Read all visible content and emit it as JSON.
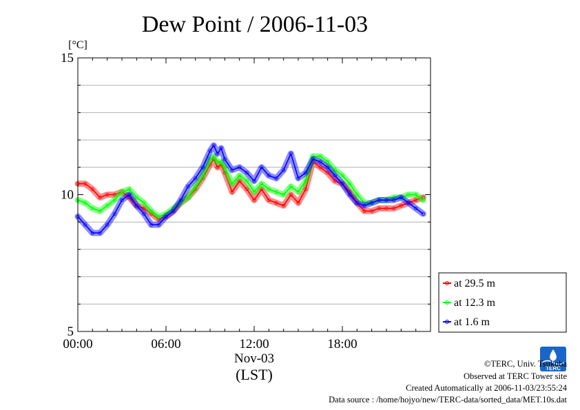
{
  "chart_data": {
    "type": "line",
    "title": "Dew Point / 2006-11-03",
    "y_unit": "[°C]",
    "ylim": [
      5,
      15
    ],
    "y_ticks": [
      5,
      10,
      15
    ],
    "y_grid": [
      6,
      7,
      8,
      9,
      11,
      12,
      13,
      14
    ],
    "xlim": [
      0,
      24
    ],
    "x_ticks": [
      {
        "value": 0,
        "label": "00:00"
      },
      {
        "value": 6,
        "label": "06:00"
      },
      {
        "value": 12,
        "label": "12:00"
      },
      {
        "value": 18,
        "label": "18:00"
      }
    ],
    "x_date_label": "Nov-03",
    "x_axis_label": "(LST)",
    "grid": true,
    "legend_position": "right-bottom",
    "series": [
      {
        "name": "at 29.5 m",
        "color": "#ff0000",
        "x": [
          0,
          0.5,
          1,
          1.5,
          2,
          2.5,
          3,
          3.5,
          4,
          4.5,
          5,
          5.5,
          6,
          6.5,
          7,
          7.5,
          8,
          8.5,
          9,
          9.25,
          9.5,
          9.75,
          10,
          10.5,
          11,
          11.5,
          12,
          12.5,
          13,
          13.5,
          14,
          14.5,
          15,
          15.5,
          16,
          16.5,
          17,
          17.5,
          18,
          18.5,
          19,
          19.5,
          20,
          20.5,
          21,
          21.5,
          22,
          22.5,
          23,
          23.5
        ],
        "values": [
          10.4,
          10.4,
          10.2,
          9.9,
          10.0,
          10.0,
          10.1,
          9.9,
          9.6,
          9.5,
          9.3,
          9.1,
          9.2,
          9.4,
          9.7,
          9.9,
          10.2,
          10.6,
          11.1,
          11.3,
          11.0,
          11.1,
          10.8,
          10.1,
          10.5,
          10.2,
          9.8,
          10.2,
          9.8,
          9.7,
          9.6,
          10.0,
          9.7,
          10.2,
          11.2,
          11.0,
          10.8,
          10.5,
          10.4,
          10.1,
          9.7,
          9.4,
          9.4,
          9.5,
          9.5,
          9.5,
          9.6,
          9.7,
          9.8,
          9.9
        ]
      },
      {
        "name": "at 12.3 m",
        "color": "#00ff00",
        "x": [
          0,
          0.5,
          1,
          1.5,
          2,
          2.5,
          3,
          3.5,
          4,
          4.5,
          5,
          5.5,
          6,
          6.5,
          7,
          7.5,
          8,
          8.5,
          9,
          9.25,
          9.5,
          9.75,
          10,
          10.5,
          11,
          11.5,
          12,
          12.5,
          13,
          13.5,
          14,
          14.5,
          15,
          15.5,
          16,
          16.5,
          17,
          17.5,
          18,
          18.5,
          19,
          19.5,
          20,
          20.5,
          21,
          21.5,
          22,
          22.5,
          23,
          23.5
        ],
        "values": [
          9.8,
          9.7,
          9.5,
          9.4,
          9.6,
          9.8,
          10.1,
          10.2,
          9.9,
          9.7,
          9.4,
          9.2,
          9.3,
          9.5,
          9.7,
          9.9,
          10.3,
          10.7,
          11.3,
          11.4,
          11.2,
          11.2,
          11.0,
          10.4,
          10.7,
          10.5,
          10.1,
          10.4,
          10.2,
          10.1,
          10.0,
          10.3,
          10.1,
          10.5,
          11.4,
          11.4,
          11.2,
          10.9,
          10.7,
          10.4,
          10.0,
          9.7,
          9.7,
          9.8,
          9.8,
          9.9,
          9.9,
          10.0,
          10.0,
          9.8
        ]
      },
      {
        "name": "at 1.6 m",
        "color": "#0000ff",
        "x": [
          0,
          0.5,
          1,
          1.5,
          2,
          2.5,
          3,
          3.5,
          4,
          4.5,
          5,
          5.5,
          6,
          6.5,
          7,
          7.5,
          8,
          8.5,
          9,
          9.25,
          9.5,
          9.75,
          10,
          10.5,
          11,
          11.5,
          12,
          12.5,
          13,
          13.5,
          14,
          14.5,
          15,
          15.5,
          16,
          16.5,
          17,
          17.5,
          18,
          18.5,
          19,
          19.5,
          20,
          20.5,
          21,
          21.5,
          22,
          22.5,
          23,
          23.5
        ],
        "values": [
          9.2,
          8.9,
          8.6,
          8.6,
          8.9,
          9.3,
          9.8,
          10.0,
          9.6,
          9.3,
          8.9,
          8.9,
          9.2,
          9.4,
          9.8,
          10.3,
          10.6,
          11.0,
          11.6,
          11.8,
          11.5,
          11.7,
          11.3,
          10.9,
          11.0,
          10.8,
          10.5,
          11.0,
          10.7,
          10.6,
          10.9,
          11.5,
          10.6,
          10.8,
          11.3,
          11.2,
          11.0,
          10.7,
          10.4,
          10.0,
          9.7,
          9.6,
          9.7,
          9.8,
          9.8,
          9.8,
          9.9,
          9.7,
          9.5,
          9.3
        ]
      }
    ]
  },
  "footer": {
    "copyright": "©TERC, Univ. Tsukuba",
    "observed": "Observed at TERC Tower site",
    "created": "Created Automatically at 2006-11-03/23:55:24",
    "source": "Data source : /home/hojyo/new/TERC-data/sorted_data/MET.10s.dat"
  },
  "logo": {
    "text": "TERC",
    "color": "#1a66c8"
  }
}
